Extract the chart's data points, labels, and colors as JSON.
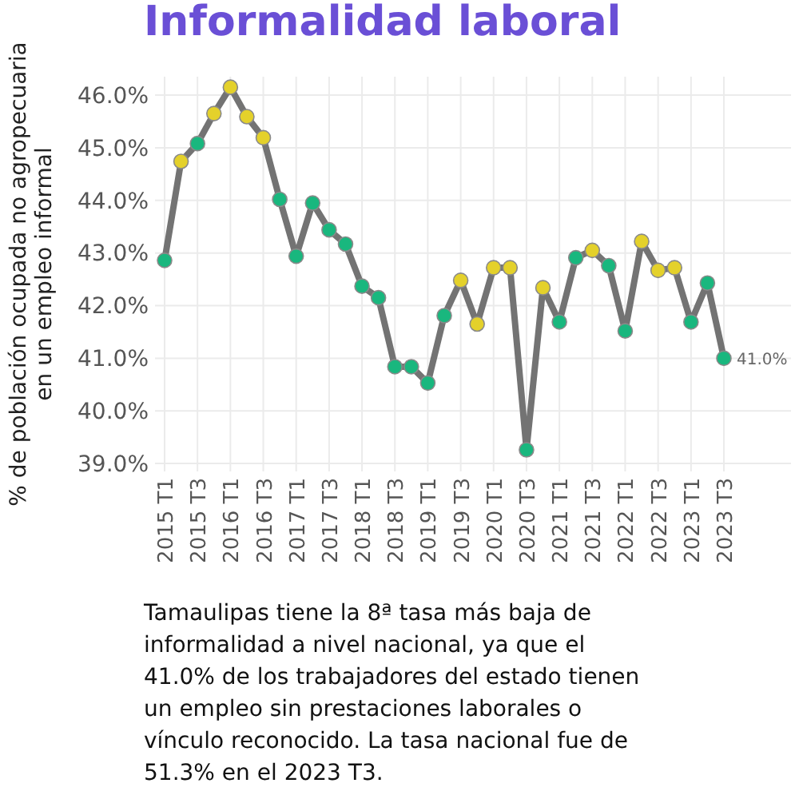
{
  "chart_data": {
    "type": "line",
    "title": "Informalidad laboral",
    "ylabel": "% de población ocupada no agropecuaria\nen un empleo informal",
    "categories": [
      "2015 T1",
      null,
      "2015 T3",
      null,
      "2016 T1",
      null,
      "2016 T3",
      null,
      "2017 T1",
      null,
      "2017 T3",
      null,
      "2018 T1",
      null,
      "2018 T3",
      null,
      "2019 T1",
      null,
      "2019 T3",
      null,
      "2020 T1",
      null,
      "2020 T3",
      null,
      "2021 T1",
      null,
      "2021 T3",
      null,
      "2022 T1",
      null,
      "2022 T3",
      null,
      "2023 T1",
      null,
      "2023 T3"
    ],
    "series": [
      {
        "color": "#737373",
        "values": [
          42.86,
          44.74,
          45.08,
          45.65,
          46.15,
          45.59,
          45.19,
          44.02,
          42.94,
          43.95,
          43.44,
          43.17,
          42.37,
          42.15,
          40.84,
          40.84,
          40.53,
          41.81,
          42.48,
          41.65,
          42.72,
          42.72,
          39.26,
          42.34,
          41.69,
          42.91,
          43.05,
          42.76,
          41.52,
          43.22,
          42.67,
          42.72,
          41.69,
          42.43,
          41.0
        ],
        "colors": [
          "#19b77e",
          "#e4d12b",
          "#19b77e",
          "#e4d12b",
          "#e4d12b",
          "#e4d12b",
          "#e4d12b",
          "#19b77e",
          "#19b77e",
          "#19b77e",
          "#19b77e",
          "#19b77e",
          "#19b77e",
          "#19b77e",
          "#19b77e",
          "#19b77e",
          "#19b77e",
          "#19b77e",
          "#e4d12b",
          "#e4d12b",
          "#e4d12b",
          "#e4d12b",
          "#19b77e",
          "#e4d12b",
          "#19b77e",
          "#19b77e",
          "#e4d12b",
          "#19b77e",
          "#19b77e",
          "#e4d12b",
          "#e4d12b",
          "#e4d12b",
          "#19b77e",
          "#19b77e",
          "#19b77e"
        ],
        "value_labels": [
          null,
          null,
          null,
          null,
          null,
          null,
          null,
          null,
          null,
          null,
          null,
          null,
          null,
          null,
          null,
          null,
          null,
          null,
          null,
          null,
          null,
          null,
          null,
          null,
          null,
          null,
          null,
          null,
          null,
          null,
          null,
          null,
          null,
          null,
          "41.0%"
        ]
      }
    ],
    "ylim": [
      38.85,
      46.35
    ],
    "yticks": [
      {
        "value": 39,
        "label": "39.0%"
      },
      {
        "value": 40,
        "label": "40.0%"
      },
      {
        "value": 41,
        "label": "41.0%"
      },
      {
        "value": 42,
        "label": "42.0%"
      },
      {
        "value": 43,
        "label": "43.0%"
      },
      {
        "value": 44,
        "label": "44.0%"
      },
      {
        "value": 45,
        "label": "45.0%"
      },
      {
        "value": 46,
        "label": "46.0%"
      }
    ],
    "grid": true,
    "marker": "circle",
    "line_style": "solid",
    "annotations": [
      "Tamaulipas tiene la 8ª tasa más baja de informalidad a nivel nacional, ya que el 41.0% de los trabajadores del estado tienen un empleo sin prestaciones laborales o vínculo reconocido. La tasa nacional fue de 51.3% en el 2023 T3."
    ]
  }
}
